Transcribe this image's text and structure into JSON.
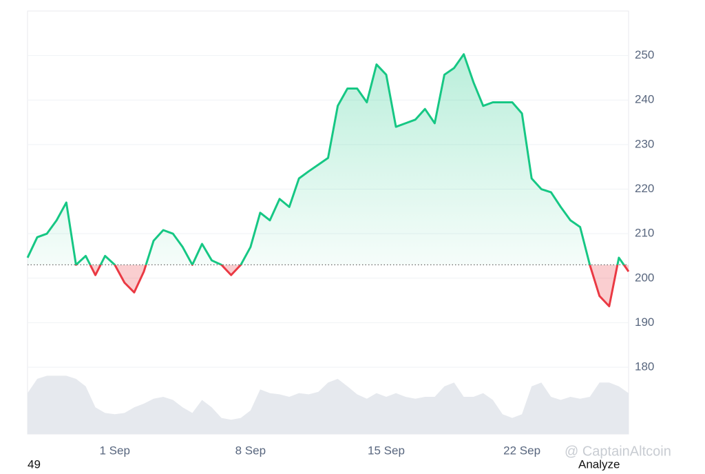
{
  "chart_data": {
    "type": "line",
    "categories": [
      null,
      null,
      null,
      null,
      null,
      null,
      null,
      null,
      null,
      "1 Sep",
      null,
      null,
      null,
      null,
      null,
      null,
      null,
      null,
      null,
      null,
      null,
      null,
      null,
      "8 Sep",
      null,
      null,
      null,
      null,
      null,
      null,
      null,
      null,
      null,
      null,
      null,
      null,
      null,
      "15 Sep",
      null,
      null,
      null,
      null,
      null,
      null,
      null,
      null,
      null,
      null,
      null,
      null,
      null,
      "22 Sep",
      null,
      null,
      null,
      null,
      null,
      null,
      null,
      null,
      null,
      null,
      null
    ],
    "series": [
      {
        "values": [
          204.6,
          209.2,
          210,
          213,
          217,
          203,
          205,
          200.7,
          205,
          203,
          199,
          196.8,
          201.5,
          208.4,
          210.8,
          210,
          207,
          203,
          207.7,
          204,
          203,
          200.7,
          203,
          207,
          214.7,
          213,
          217.8,
          216,
          222.4,
          224,
          225.5,
          227,
          238.7,
          242.6,
          242.6,
          239.5,
          248,
          245.7,
          234,
          234.8,
          235.6,
          238,
          234.8,
          245.7,
          247.2,
          250.3,
          244,
          238.7,
          239.5,
          239.5,
          239.5,
          237,
          222.4,
          220,
          219.3,
          216,
          213,
          211.5,
          203,
          196,
          193.7,
          204.6,
          201.5
        ],
        "color": "#16c784",
        "below_color": "#ea3943"
      }
    ],
    "baseline": 203,
    "volume": {
      "color": "#e6e9ee",
      "ylim": [
        0,
        100
      ],
      "values": [
        66,
        89,
        94,
        94,
        94,
        89,
        77,
        43,
        34,
        32,
        34,
        43,
        49,
        57,
        60,
        55,
        43,
        34,
        55,
        43,
        26,
        23,
        26,
        38,
        72,
        66,
        64,
        60,
        66,
        64,
        68,
        83,
        89,
        77,
        64,
        57,
        66,
        60,
        66,
        60,
        57,
        60,
        60,
        77,
        83,
        60,
        60,
        66,
        55,
        32,
        26,
        32,
        77,
        83,
        60,
        55,
        60,
        57,
        60,
        83,
        83,
        77,
        66
      ]
    },
    "ylim": [
      165,
      260
    ],
    "yticks": [
      180,
      190,
      200,
      210,
      220,
      230,
      240,
      250
    ],
    "grid": true
  },
  "footer": {
    "left": "49",
    "right": "Analyze",
    "watermark": "@ CaptainAltcoin"
  }
}
